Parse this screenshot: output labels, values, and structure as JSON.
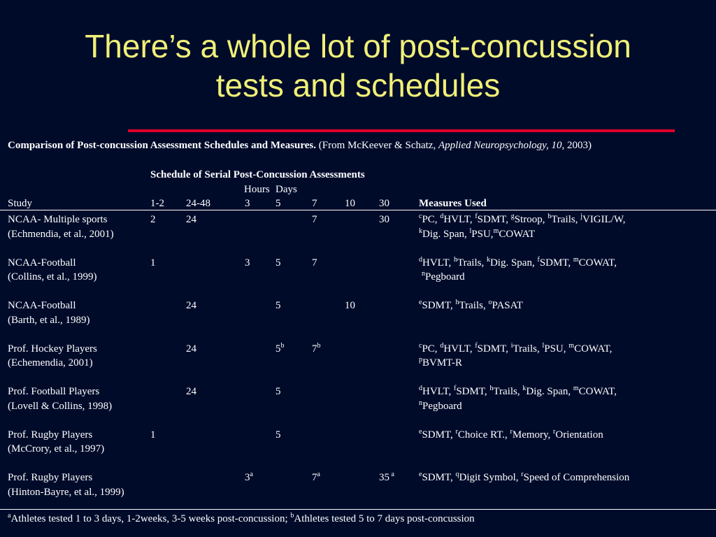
{
  "title": {
    "line1": "There’s a whole lot of post-concussion",
    "line2": "tests and schedules"
  },
  "caption": {
    "bold": "Comparison of Post-concussion Assessment Schedules and Measures.",
    "normal": " (From McKeever & Schatz, ",
    "italic": "Applied Neuropsychology, 10,",
    "year": " 2003)"
  },
  "header": {
    "schedule": "Schedule of Serial Post-Concussion Assessments",
    "hours": "Hours",
    "days": "Days",
    "study": "Study",
    "c12": "1-2",
    "c2448": "24-48",
    "c3": "3",
    "c5": "5",
    "c7": "7",
    "c10": "10",
    "c30": "30",
    "measures": "Measures Used"
  },
  "rows": [
    {
      "study1": "NCAA- Multiple sports",
      "study2": "(Echmendia, et al., 2001)",
      "c12": "2",
      "c2448": "24",
      "c3": "",
      "c5": "",
      "c5sup": "",
      "c7": "7",
      "c7sup": "",
      "c10": "",
      "c30": "30",
      "c30sup": "",
      "m1": [
        [
          "c",
          "PC, "
        ],
        [
          "d",
          "HVLT, "
        ],
        [
          "f",
          "SDMT, "
        ],
        [
          "g",
          "Stroop, "
        ],
        [
          "h",
          "Trails, "
        ],
        [
          "j",
          "VIGIL/W,"
        ]
      ],
      "m2": [
        [
          "k",
          "Dig. Span, "
        ],
        [
          "l",
          "PSU,"
        ],
        [
          "m",
          "COWAT"
        ]
      ]
    },
    {
      "study1": "NCAA-Football",
      "study2": "(Collins, et al., 1999)",
      "c12": "1",
      "c2448": "",
      "c3": "3",
      "c5": "5",
      "c5sup": "",
      "c7": "7",
      "c7sup": "",
      "c10": "",
      "c30": "",
      "c30sup": "",
      "m1": [
        [
          "d",
          "HVLT, "
        ],
        [
          "h",
          "Trails, "
        ],
        [
          "k",
          "Dig. Span, "
        ],
        [
          "f",
          "SDMT, "
        ],
        [
          "m",
          "COWAT,"
        ]
      ],
      "m2": [
        [
          "n",
          "Pegboard"
        ]
      ]
    },
    {
      "study1": "NCAA-Football",
      "study2": "(Barth, et al., 1989)",
      "c12": "",
      "c2448": "24",
      "c3": "",
      "c5": "5",
      "c5sup": "",
      "c7": "",
      "c7sup": "",
      "c10": "10",
      "c30": "",
      "c30sup": "",
      "m1": [
        [
          "e",
          "SDMT, "
        ],
        [
          "h",
          "Trails, "
        ],
        [
          "o",
          "PASAT"
        ]
      ],
      "m2": []
    },
    {
      "study1": "Prof. Hockey Players",
      "study2": "(Echemendia, 2001)",
      "c12": "",
      "c2448": "24",
      "c3": "",
      "c5": "5",
      "c5sup": "b",
      "c7": "7",
      "c7sup": "b",
      "c10": "",
      "c30": "",
      "c30sup": "",
      "m1": [
        [
          "c",
          "PC, "
        ],
        [
          "d",
          "HVLT, "
        ],
        [
          "f",
          "SDMT, "
        ],
        [
          "i",
          "Trails, "
        ],
        [
          "l",
          "PSU, "
        ],
        [
          "m",
          "COWAT,"
        ]
      ],
      "m2": [
        [
          "p",
          "BVMT-R"
        ]
      ]
    },
    {
      "study1": "Prof. Football Players",
      "study2": "(Lovell & Collins, 1998)",
      "c12": "",
      "c2448": "24",
      "c3": "",
      "c5": "5",
      "c5sup": "",
      "c7": "",
      "c7sup": "",
      "c10": "",
      "c30": "",
      "c30sup": "",
      "m1": [
        [
          "d",
          "HVLT, "
        ],
        [
          "f",
          "SDMT, "
        ],
        [
          "h",
          "Trails, "
        ],
        [
          "k",
          "Dig. Span, "
        ],
        [
          "m",
          "COWAT,"
        ]
      ],
      "m2": [
        [
          "n",
          "Pegboard"
        ]
      ]
    },
    {
      "study1": "Prof. Rugby Players",
      "study2": "(McCrory, et al., 1997)",
      "c12": "1",
      "c2448": "",
      "c3": "",
      "c5": "5",
      "c5sup": "",
      "c7": "",
      "c7sup": "",
      "c10": "",
      "c30": "",
      "c30sup": "",
      "m1": [
        [
          "e",
          "SDMT, "
        ],
        [
          "r",
          "Choice RT., "
        ],
        [
          "r",
          "Memory, "
        ],
        [
          "r",
          "Orientation"
        ]
      ],
      "m2": []
    },
    {
      "study1": "Prof. Rugby Players",
      "study2": "(Hinton-Bayre, et al., 1999)",
      "c12": "",
      "c2448": "",
      "c3": "3",
      "c3sup": "a",
      "c5": "",
      "c5sup": "",
      "c7": "7",
      "c7sup": "a",
      "c10": "",
      "c30": "35",
      "c30sup": "a",
      "m1": [
        [
          "e",
          "SDMT, "
        ],
        [
          "q",
          "Digit Symbol, "
        ],
        [
          "r",
          "Speed of Comprehension"
        ]
      ],
      "m2": []
    }
  ],
  "footnote": [
    [
      "a",
      "Athletes tested 1 to 3 days, 1-2weeks, 3-5 weeks post-concussion;  "
    ],
    [
      "b",
      "Athletes tested 5 to 7 days post-concussion"
    ]
  ],
  "colors": {
    "background": "#000b2a",
    "title": "#f0f078",
    "rule": "#e0002a"
  }
}
